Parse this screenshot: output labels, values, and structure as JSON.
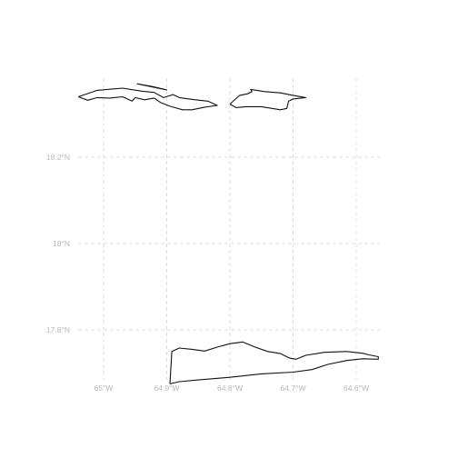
{
  "map": {
    "graticule": {
      "longitude_labels": [
        {
          "lon": -65.0,
          "label": "65°W"
        },
        {
          "lon": -64.9,
          "label": "64.9°W"
        },
        {
          "lon": -64.8,
          "label": "64.8°W"
        },
        {
          "lon": -64.7,
          "label": "64.7°W"
        },
        {
          "lon": -64.6,
          "label": "64.6°W"
        }
      ],
      "latitude_labels": [
        {
          "lat": 18.2,
          "label": "18.2°N"
        },
        {
          "lat": 18.0,
          "label": "18°N"
        },
        {
          "lat": 17.8,
          "label": "17.8°N"
        }
      ],
      "line_style": "dashed",
      "line_color": "#dcdcdc",
      "label_color": "#b8b8b8"
    },
    "coastline_color": "#111111",
    "features": [
      {
        "name": "northwest-island",
        "coords": [
          [
            -65.04,
            18.34
          ],
          [
            -65.01,
            18.355
          ],
          [
            -64.97,
            18.36
          ],
          [
            -64.94,
            18.353
          ],
          [
            -64.92,
            18.35
          ],
          [
            -64.905,
            18.338
          ],
          [
            -64.89,
            18.345
          ],
          [
            -64.88,
            18.338
          ],
          [
            -64.855,
            18.333
          ],
          [
            -64.835,
            18.33
          ],
          [
            -64.82,
            18.32
          ],
          [
            -64.84,
            18.316
          ],
          [
            -64.86,
            18.31
          ],
          [
            -64.875,
            18.31
          ],
          [
            -64.895,
            18.318
          ],
          [
            -64.91,
            18.327
          ],
          [
            -64.92,
            18.337
          ],
          [
            -64.935,
            18.333
          ],
          [
            -64.95,
            18.338
          ],
          [
            -64.955,
            18.33
          ],
          [
            -64.97,
            18.34
          ],
          [
            -64.99,
            18.337
          ],
          [
            -65.01,
            18.338
          ],
          [
            -65.025,
            18.332
          ],
          [
            -65.04,
            18.34
          ]
        ]
      },
      {
        "name": "northwest-islet",
        "coords": [
          [
            -64.947,
            18.37
          ],
          [
            -64.92,
            18.363
          ],
          [
            -64.9,
            18.356
          ],
          [
            -64.92,
            18.362
          ],
          [
            -64.947,
            18.37
          ]
        ]
      },
      {
        "name": "northeast-island",
        "coords": [
          [
            -64.8,
            18.323
          ],
          [
            -64.785,
            18.343
          ],
          [
            -64.772,
            18.347
          ],
          [
            -64.765,
            18.352
          ],
          [
            -64.767,
            18.357
          ],
          [
            -64.745,
            18.352
          ],
          [
            -64.72,
            18.349
          ],
          [
            -64.703,
            18.344
          ],
          [
            -64.68,
            18.338
          ],
          [
            -64.7,
            18.335
          ],
          [
            -64.707,
            18.33
          ],
          [
            -64.71,
            18.313
          ],
          [
            -64.72,
            18.31
          ],
          [
            -64.75,
            18.317
          ],
          [
            -64.775,
            18.317
          ],
          [
            -64.79,
            18.315
          ],
          [
            -64.8,
            18.323
          ]
        ]
      },
      {
        "name": "southern-island",
        "coords": [
          [
            -64.895,
            17.675
          ],
          [
            -64.892,
            17.75
          ],
          [
            -64.88,
            17.758
          ],
          [
            -64.86,
            17.755
          ],
          [
            -64.84,
            17.751
          ],
          [
            -64.82,
            17.76
          ],
          [
            -64.8,
            17.768
          ],
          [
            -64.78,
            17.772
          ],
          [
            -64.76,
            17.76
          ],
          [
            -64.74,
            17.75
          ],
          [
            -64.72,
            17.745
          ],
          [
            -64.706,
            17.735
          ],
          [
            -64.695,
            17.732
          ],
          [
            -64.68,
            17.741
          ],
          [
            -64.65,
            17.748
          ],
          [
            -64.615,
            17.75
          ],
          [
            -64.59,
            17.746
          ],
          [
            -64.58,
            17.742
          ],
          [
            -64.565,
            17.738
          ],
          [
            -64.565,
            17.732
          ],
          [
            -64.59,
            17.733
          ],
          [
            -64.615,
            17.729
          ],
          [
            -64.645,
            17.72
          ],
          [
            -64.67,
            17.708
          ],
          [
            -64.7,
            17.702
          ],
          [
            -64.75,
            17.698
          ],
          [
            -64.8,
            17.69
          ],
          [
            -64.85,
            17.684
          ],
          [
            -64.88,
            17.68
          ],
          [
            -64.895,
            17.675
          ]
        ]
      }
    ]
  }
}
